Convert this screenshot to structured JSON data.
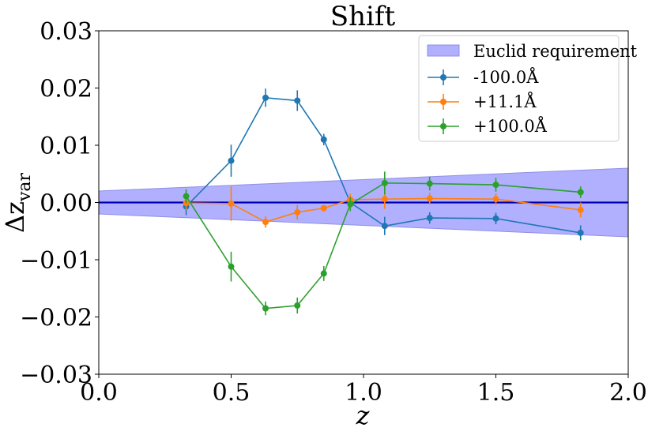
{
  "chart_data": {
    "type": "line",
    "title": "Shift",
    "xlabel": "z",
    "ylabel": {
      "base": "Δz",
      "sub": "var"
    },
    "xlim": [
      0.0,
      2.0
    ],
    "ylim": [
      -0.03,
      0.03
    ],
    "xticks": [
      0.0,
      0.5,
      1.0,
      1.5,
      2.0
    ],
    "xtick_labels": [
      "0.0",
      "0.5",
      "1.0",
      "1.5",
      "2.0"
    ],
    "yticks": [
      -0.03,
      -0.02,
      -0.01,
      0.0,
      0.01,
      0.02,
      0.03
    ],
    "ytick_labels": [
      "−0.03",
      "−0.02",
      "−0.01",
      "0.00",
      "0.01",
      "0.02",
      "0.03"
    ],
    "grid": false,
    "legend_position": "top-right",
    "requirement_band": {
      "name": "Euclid requirement",
      "x": [
        0.0,
        2.0
      ],
      "half_width": [
        0.002,
        0.006
      ],
      "color": "#b0b0ff",
      "edge_color": "#8f8fe8"
    },
    "zero_line": {
      "y": 0.0,
      "color": "#0000b0"
    },
    "series": [
      {
        "name": "-100.0Å",
        "color": "#1f77b4",
        "x": [
          0.33,
          0.5,
          0.63,
          0.75,
          0.85,
          0.95,
          1.08,
          1.25,
          1.5,
          1.82
        ],
        "y": [
          -0.0007,
          0.0073,
          0.0183,
          0.0178,
          0.011,
          0.0,
          -0.0041,
          -0.0027,
          -0.0028,
          -0.0053
        ],
        "yerr": [
          0.0015,
          0.0028,
          0.0016,
          0.0018,
          0.001,
          0.0008,
          0.0016,
          0.001,
          0.001,
          0.0013
        ]
      },
      {
        "name": "+11.1Å",
        "color": "#ff7f0e",
        "x": [
          0.33,
          0.5,
          0.63,
          0.75,
          0.85,
          0.95,
          1.08,
          1.25,
          1.5,
          1.82
        ],
        "y": [
          -0.0001,
          -0.0002,
          -0.0034,
          -0.0017,
          -0.001,
          0.0005,
          0.0006,
          0.0007,
          0.0006,
          -0.0013
        ],
        "yerr": [
          0.0012,
          0.003,
          0.001,
          0.0013,
          0.0005,
          0.001,
          0.0017,
          0.001,
          0.001,
          0.0013
        ]
      },
      {
        "name": "+100.0Å",
        "color": "#2ca02c",
        "x": [
          0.33,
          0.5,
          0.63,
          0.75,
          0.85,
          0.95,
          1.08,
          1.25,
          1.5,
          1.82
        ],
        "y": [
          0.0011,
          -0.0112,
          -0.0185,
          -0.018,
          -0.0124,
          -0.0003,
          0.0034,
          0.0033,
          0.0031,
          0.0018
        ],
        "yerr": [
          0.0012,
          0.0026,
          0.0012,
          0.0014,
          0.0013,
          0.0012,
          0.002,
          0.0012,
          0.0012,
          0.001
        ]
      }
    ]
  }
}
